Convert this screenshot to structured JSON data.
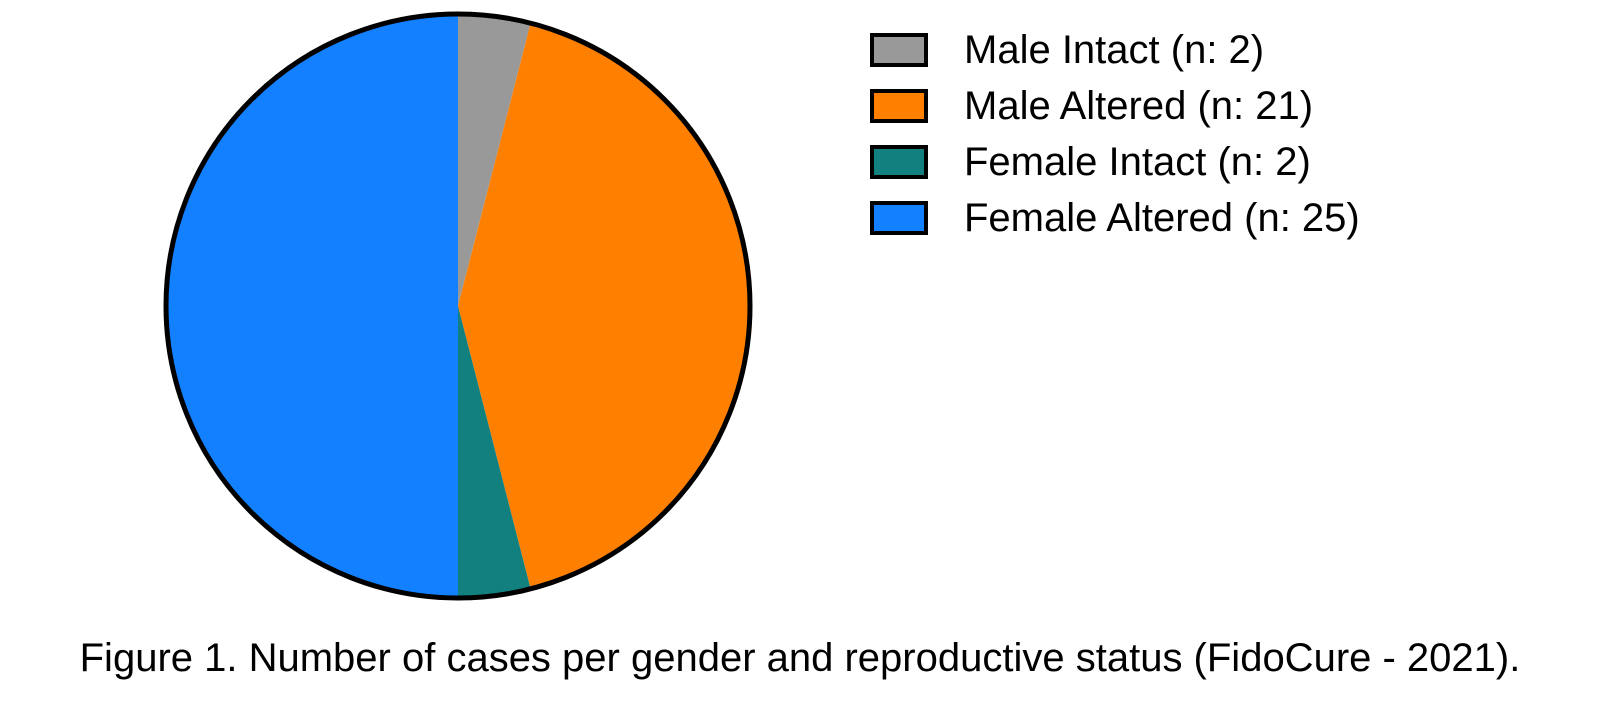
{
  "chart_data": {
    "type": "pie",
    "caption": "Figure 1. Number of cases per gender and reproductive status (FidoCure - 2021).",
    "start": "12 o'clock",
    "direction": "clockwise",
    "legend_position": "right",
    "slices": [
      {
        "label": "Male Intact (n: 2)",
        "value": 2,
        "color": "#999999"
      },
      {
        "label": "Male Altered (n: 21)",
        "value": 21,
        "color": "#FF8000"
      },
      {
        "label": "Female Intact (n: 2)",
        "value": 2,
        "color": "#138080"
      },
      {
        "label": "Female Altered (n: 25)",
        "value": 25,
        "color": "#1280FF"
      }
    ]
  }
}
